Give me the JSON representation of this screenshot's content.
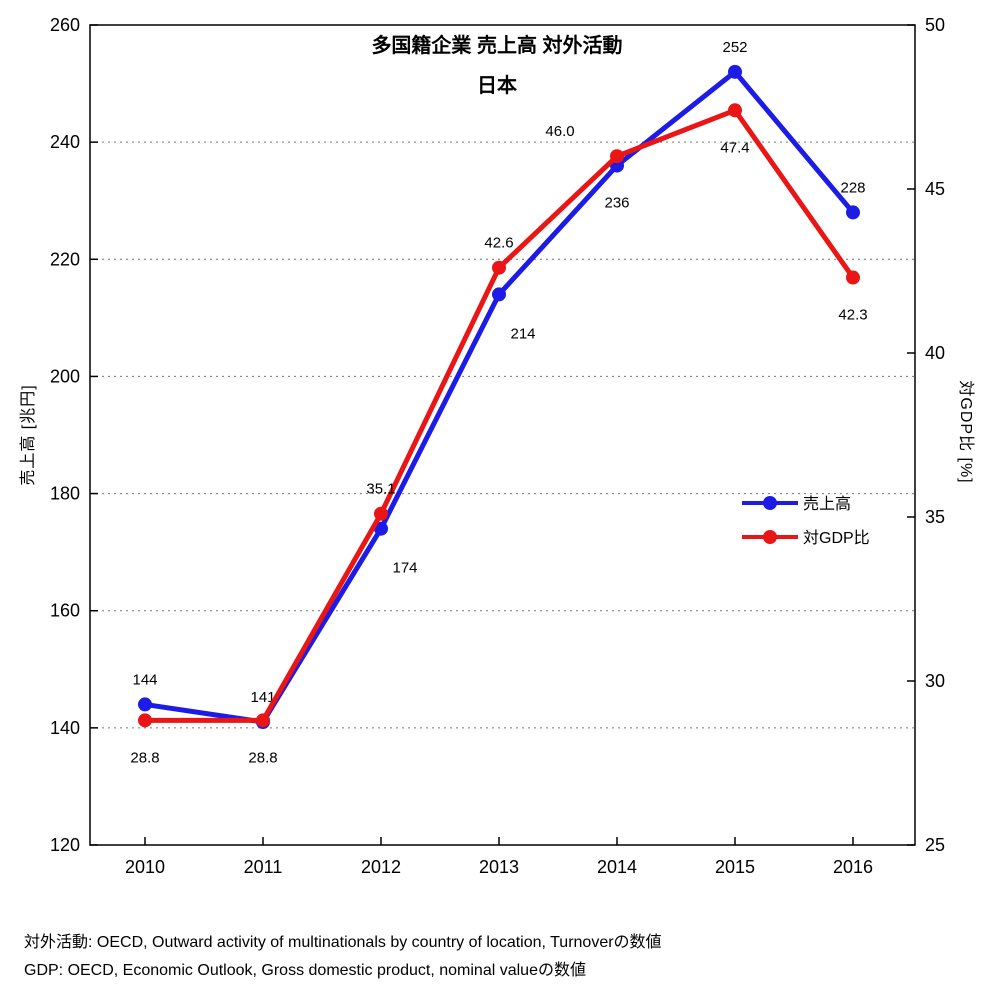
{
  "title": {
    "line1": "多国籍企業 売上高 対外活動",
    "line2": "日本"
  },
  "chart_data": {
    "type": "line",
    "x": [
      2010,
      2011,
      2012,
      2013,
      2014,
      2015,
      2016
    ],
    "series": [
      {
        "id": "sales",
        "name": "売上高",
        "axis": "left",
        "color": "#1c1ce6",
        "values": [
          144,
          141,
          174,
          214,
          236,
          252,
          228
        ],
        "labels": [
          "144",
          "141",
          "174",
          "214",
          "236",
          "252",
          "228"
        ],
        "label_pos": [
          "above",
          "above",
          "below-right",
          "below-right",
          "below",
          "above",
          "above"
        ]
      },
      {
        "id": "gdp-ratio",
        "name": "対GDP比",
        "axis": "right",
        "color": "#ea1515",
        "values": [
          28.8,
          28.8,
          35.1,
          42.6,
          46.0,
          47.4,
          42.3
        ],
        "labels": [
          "28.8",
          "28.8",
          "35.1",
          "42.6",
          "46.0",
          "47.4",
          "42.3"
        ],
        "label_pos": [
          "below",
          "below",
          "above",
          "above",
          "above-left",
          "below",
          "below"
        ]
      }
    ],
    "left_axis": {
      "label": "売上高 [兆円]",
      "min": 120,
      "max": 260,
      "step": 20,
      "ticks": [
        120,
        140,
        160,
        180,
        200,
        220,
        240,
        260
      ]
    },
    "right_axis": {
      "label": "対GDP比 [%]",
      "min": 25,
      "max": 50,
      "step": 5,
      "ticks": [
        25,
        30,
        35,
        40,
        45,
        50
      ]
    },
    "grid": "horizontal-dotted",
    "legend_position": "middle-right"
  },
  "legend": {
    "items": [
      {
        "label": "売上高",
        "color": "#1c1ce6"
      },
      {
        "label": "対GDP比",
        "color": "#ea1515"
      }
    ]
  },
  "footnotes": [
    "対外活動: OECD, Outward activity of multinationals by country of location, Turnoverの数値",
    "GDP: OECD, Economic Outlook, Gross domestic product, nominal valueの数値"
  ]
}
